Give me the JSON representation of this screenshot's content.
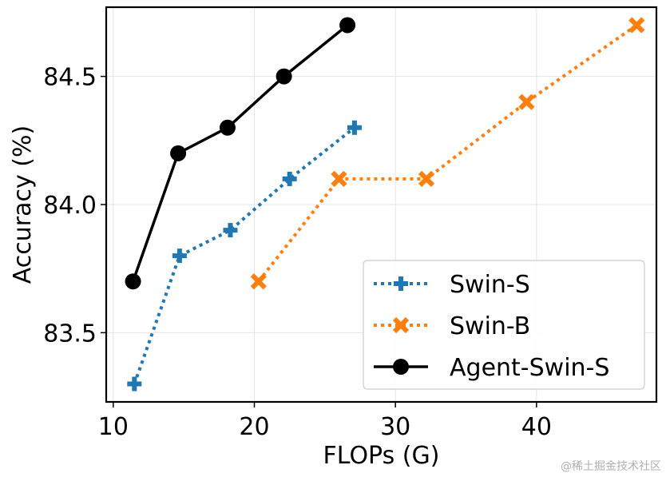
{
  "chart_data": {
    "type": "line",
    "title": "",
    "xlabel": "FLOPs (G)",
    "ylabel": "Accuracy (%)",
    "xlim": [
      9.5,
      48.5
    ],
    "ylim": [
      83.23,
      84.77
    ],
    "xticks": [
      10,
      20,
      30,
      40
    ],
    "xtick_labels": [
      "10",
      "20",
      "30",
      "40"
    ],
    "yticks": [
      83.5,
      84.0,
      84.5
    ],
    "ytick_labels": [
      "83.5",
      "84.0",
      "84.5"
    ],
    "grid": true,
    "legend_position": "lower-right",
    "series": [
      {
        "name": "Swin-S",
        "color": "#1f77b4",
        "linestyle": "dotted",
        "marker": "plus",
        "x": [
          11.5,
          14.7,
          18.3,
          22.5,
          27.1
        ],
        "y": [
          83.3,
          83.8,
          83.9,
          84.1,
          84.3
        ]
      },
      {
        "name": "Swin-B",
        "color": "#ff7f0e",
        "linestyle": "dotted",
        "marker": "x",
        "x": [
          20.3,
          26.0,
          32.2,
          39.3,
          47.1
        ],
        "y": [
          83.7,
          84.1,
          84.1,
          84.4,
          84.7
        ]
      },
      {
        "name": "Agent-Swin-S",
        "color": "#000000",
        "linestyle": "solid",
        "marker": "circle",
        "x": [
          11.4,
          14.6,
          18.1,
          22.1,
          26.6
        ],
        "y": [
          83.7,
          84.2,
          84.3,
          84.5,
          84.7
        ]
      }
    ]
  },
  "watermark": "@稀土掘金技术社区"
}
